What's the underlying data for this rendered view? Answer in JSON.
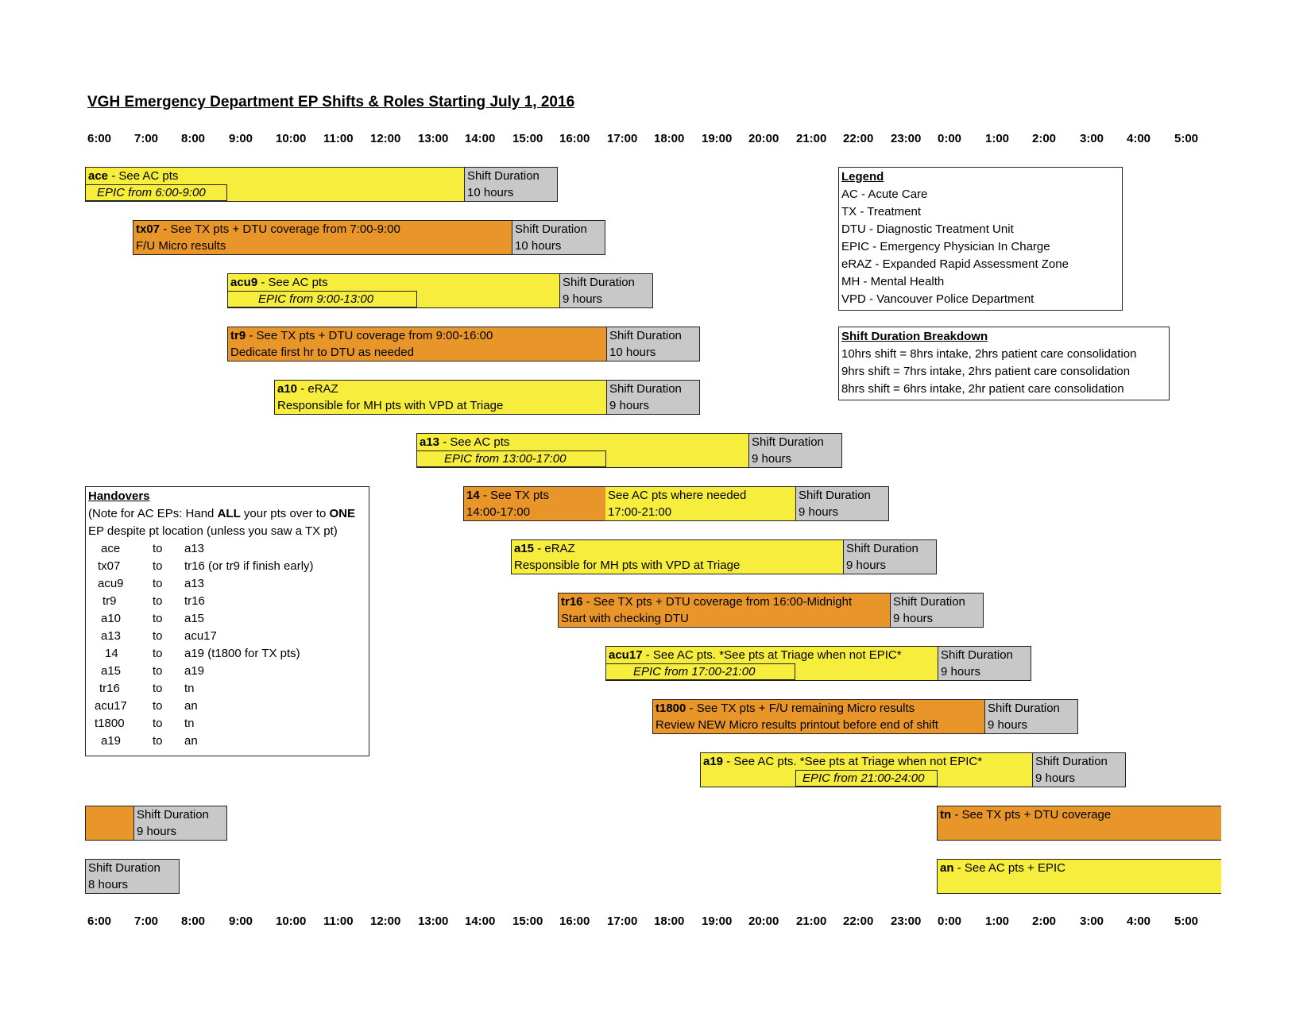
{
  "title": "VGH Emergency Department EP Shifts & Roles Starting July 1, 2016",
  "times": [
    "6:00",
    "7:00",
    "8:00",
    "9:00",
    "10:00",
    "11:00",
    "12:00",
    "13:00",
    "14:00",
    "15:00",
    "16:00",
    "17:00",
    "18:00",
    "19:00",
    "20:00",
    "21:00",
    "22:00",
    "23:00",
    "0:00",
    "1:00",
    "2:00",
    "3:00",
    "4:00",
    "5:00"
  ],
  "duration_label": "Shift Duration",
  "shifts": {
    "ace": {
      "code": "ace",
      "text": " - See AC pts",
      "epic": "EPIC from 6:00-9:00",
      "duration": "10 hours"
    },
    "tx07": {
      "code": "tx07",
      "text": " - See TX pts + DTU coverage from 7:00-9:00",
      "line2": "F/U Micro results",
      "duration": "10 hours"
    },
    "acu9": {
      "code": "acu9",
      "text": " - See AC pts",
      "epic": "EPIC from 9:00-13:00",
      "duration": "9 hours"
    },
    "tr9": {
      "code": "tr9",
      "text": " - See TX pts + DTU coverage from 9:00-16:00",
      "line2": "Dedicate first hr to DTU as needed",
      "duration": "10 hours"
    },
    "a10": {
      "code": "a10",
      "text": " - eRAZ",
      "line2": "Responsible for MH pts with VPD at Triage",
      "duration": "9 hours"
    },
    "a13": {
      "code": "a13",
      "text": " - See AC pts",
      "epic": "EPIC from 13:00-17:00",
      "duration": "9 hours"
    },
    "s14": {
      "code": "14",
      "text": " - See TX pts",
      "line2": "14:00-17:00",
      "ac_line1": "See AC pts where needed",
      "ac_line2": "17:00-21:00",
      "duration": "9 hours"
    },
    "a15": {
      "code": "a15",
      "text": " - eRAZ",
      "line2": "Responsible for MH pts with VPD at Triage",
      "duration": "9 hours"
    },
    "tr16": {
      "code": "tr16",
      "text": " - See TX pts + DTU coverage from 16:00-Midnight",
      "line2": "Start with checking DTU",
      "duration": "9 hours"
    },
    "acu17": {
      "code": "acu17",
      "text": " - See AC pts. *See pts at Triage when not EPIC*",
      "epic": "EPIC from 17:00-21:00",
      "duration": "9 hours"
    },
    "t1800": {
      "code": "t1800",
      "text": " - See TX pts + F/U remaining Micro results",
      "line2": "Review NEW Micro results printout before end of shift",
      "duration": "9 hours"
    },
    "a19": {
      "code": "a19",
      "text": " - See AC pts. *See pts at Triage when not EPIC*",
      "epic": "EPIC from 21:00-24:00",
      "duration": "9 hours"
    },
    "tn": {
      "code": "tn",
      "text": " - See TX pts + DTU coverage"
    },
    "an": {
      "code": "an",
      "text": " - See AC pts + EPIC"
    }
  },
  "extra_durations": {
    "nine": "9 hours",
    "eight": "8 hours"
  },
  "legend": {
    "heading": "Legend",
    "items": [
      "AC - Acute Care",
      "TX - Treatment",
      "DTU - Diagnostic Treatment Unit",
      "EPIC - Emergency Physician In Charge",
      "eRAZ - Expanded Rapid Assessment Zone",
      "MH - Mental Health",
      "VPD - Vancouver Police Department"
    ]
  },
  "breakdown": {
    "heading": "Shift Duration Breakdown",
    "items": [
      "10hrs shift = 8hrs intake, 2hrs patient care consolidation",
      "9hrs shift = 7hrs intake, 2hrs patient care consolidation",
      "8hrs shift = 6hrs intake, 2hr patient care consolidation"
    ]
  },
  "handovers": {
    "heading": "Handovers",
    "note_a": "(Note for AC EPs: Hand ",
    "note_all": "ALL",
    "note_b": " your pts over to ",
    "note_one": "ONE",
    "note_c": "EP despite pt location (unless you saw a TX pt)",
    "rows": [
      {
        "from": "ace",
        "to": "to",
        "target": "a13"
      },
      {
        "from": "tx07",
        "to": "to",
        "target": "tr16 (or tr9 if finish early)"
      },
      {
        "from": "acu9",
        "to": "to",
        "target": "a13"
      },
      {
        "from": "tr9",
        "to": "to",
        "target": "tr16"
      },
      {
        "from": "a10",
        "to": "to",
        "target": "a15"
      },
      {
        "from": "a13",
        "to": "to",
        "target": "acu17"
      },
      {
        "from": "14",
        "to": "to",
        "target": "a19 (t1800 for TX pts)"
      },
      {
        "from": "a15",
        "to": "to",
        "target": "a19"
      },
      {
        "from": "tr16",
        "to": "to",
        "target": "tn"
      },
      {
        "from": "acu17",
        "to": "to",
        "target": "an"
      },
      {
        "from": "t1800",
        "to": "to",
        "target": "tn"
      },
      {
        "from": "a19",
        "to": "to",
        "target": "an"
      }
    ]
  },
  "colors": {
    "ac_yellow": "#f6ed3d",
    "tx_orange": "#e8962a",
    "duration_gray": "#c8c8c8"
  }
}
